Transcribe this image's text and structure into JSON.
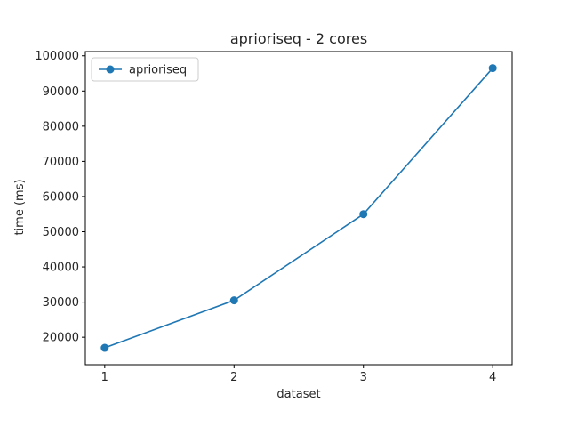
{
  "chart_data": {
    "type": "line",
    "title": "aprioriseq - 2 cores",
    "xlabel": "dataset",
    "ylabel": "time (ms)",
    "x": [
      1,
      2,
      3,
      4
    ],
    "xticks": [
      "1",
      "2",
      "3",
      "4"
    ],
    "yticks": [
      20000,
      30000,
      40000,
      50000,
      60000,
      70000,
      80000,
      90000,
      100000
    ],
    "xlim": [
      0.85,
      4.15
    ],
    "ylim": [
      12200,
      101200
    ],
    "grid": false,
    "legend_position": "top-left",
    "series": [
      {
        "name": "aprioriseq",
        "color": "#1f77b4",
        "marker": "circle",
        "values": [
          17000,
          30500,
          55000,
          96500
        ]
      }
    ]
  }
}
